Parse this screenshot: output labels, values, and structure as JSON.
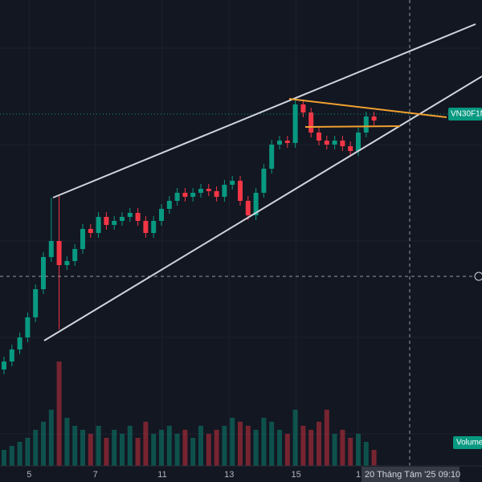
{
  "chart_data": {
    "type": "candlestick",
    "symbol_label": "VN30F1M",
    "volume_label": "Volume",
    "crosshair_label": "20 Tháng Tám '25   09:10",
    "up_color": "#089981",
    "down_color": "#f23645",
    "open": [
      1755,
      1760,
      1767.5,
      1775,
      1787.5,
      1805,
      1825,
      1835,
      1820,
      1822.5,
      1830,
      1842.5,
      1840,
      1850,
      1845,
      1847.5,
      1850,
      1852.5,
      1847.5,
      1840,
      1847.5,
      1855,
      1860,
      1865,
      1862.5,
      1865,
      1867.5,
      1866,
      1862.5,
      1870,
      1872.5,
      1860,
      1851,
      1865,
      1880,
      1895,
      1897.5,
      1896,
      1920,
      1915,
      1902.5,
      1897.5,
      1895,
      1897.5,
      1894,
      1891,
      1902.5,
      1912.5
    ],
    "high": [
      1763,
      1770.5,
      1778,
      1790.5,
      1808,
      1828,
      1862,
      1863,
      1825.5,
      1833,
      1845.5,
      1845.5,
      1853,
      1853,
      1850.5,
      1853,
      1855.5,
      1855.5,
      1850.5,
      1850.5,
      1858,
      1863,
      1868,
      1868,
      1868,
      1870.5,
      1870.5,
      1869,
      1873,
      1875.5,
      1875.5,
      1863,
      1868,
      1883,
      1898,
      1900.5,
      1900.5,
      1924,
      1923,
      1918,
      1905.5,
      1900.5,
      1900.5,
      1900.5,
      1897,
      1905.5,
      1915.5,
      1915.5
    ],
    "low": [
      1752,
      1757,
      1764.5,
      1772,
      1784.5,
      1802,
      1822,
      1780,
      1817,
      1819.5,
      1827,
      1837,
      1837,
      1842,
      1842,
      1844.5,
      1847,
      1844.5,
      1837,
      1837,
      1844.5,
      1852,
      1857,
      1859.5,
      1859.5,
      1862,
      1863,
      1859.5,
      1859.5,
      1867,
      1857,
      1848,
      1848,
      1862,
      1877,
      1892,
      1893,
      1893,
      1912,
      1899.5,
      1894.5,
      1892,
      1892,
      1891,
      1888,
      1888,
      1899.5,
      1907
    ],
    "close": [
      1760,
      1767.5,
      1775,
      1787.5,
      1805,
      1825,
      1835,
      1820,
      1822.5,
      1830,
      1842.5,
      1840,
      1850,
      1845,
      1847.5,
      1850,
      1852.5,
      1847.5,
      1840,
      1847.5,
      1855,
      1860,
      1865,
      1862.5,
      1865,
      1867.5,
      1866,
      1862.5,
      1870,
      1872.5,
      1860,
      1851,
      1865,
      1880,
      1895,
      1897.5,
      1896,
      1920,
      1915,
      1902.5,
      1897.5,
      1895,
      1897.5,
      1894,
      1891,
      1902.5,
      1912.5,
      1910
    ],
    "volume": [
      20,
      25,
      30,
      35,
      45,
      55,
      70,
      130,
      60,
      50,
      45,
      40,
      50,
      35,
      45,
      40,
      50,
      35,
      55,
      40,
      45,
      50,
      40,
      45,
      35,
      50,
      40,
      45,
      50,
      60,
      55,
      50,
      45,
      60,
      55,
      45,
      40,
      70,
      50,
      45,
      55,
      70,
      40,
      45,
      35,
      40,
      30,
      20
    ],
    "ylim": [
      1695,
      1985
    ],
    "vlim": [
      0,
      200
    ],
    "xticks": [
      {
        "value": 3.2,
        "label": "5"
      },
      {
        "value": 11.6,
        "label": "7"
      },
      {
        "value": 20.1,
        "label": "11"
      },
      {
        "value": 28.6,
        "label": "13"
      },
      {
        "value": 37.1,
        "label": "15"
      },
      {
        "value": 45,
        "label": "1"
      }
    ]
  }
}
